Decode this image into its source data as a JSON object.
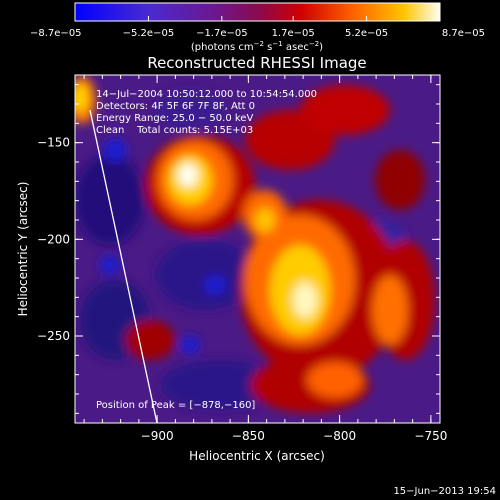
{
  "chart_data": {
    "type": "heatmap",
    "title": "Reconstructed RHESSI Image",
    "xlabel": "Heliocentric X (arcsec)",
    "ylabel": "Heliocentric Y (arcsec)",
    "x_ticks": [
      -900,
      -850,
      -800,
      -750
    ],
    "x_tick_labels": [
      "−900",
      "−850",
      "−800",
      "−750"
    ],
    "y_ticks": [
      -150,
      -200,
      -250
    ],
    "y_tick_labels": [
      "−150",
      "−200",
      "−250"
    ],
    "xlim": [
      -945,
      -745
    ],
    "ylim": [
      -295,
      -115
    ],
    "colorbar": {
      "range": [
        -8.7e-05,
        8.7e-05
      ],
      "tick_labels": [
        "−8.7e−05",
        "−5.2e−05",
        "−1.7e−05",
        "1.7e−05",
        "5.2e−05",
        "8.7e−05"
      ],
      "unit_main": "(photons cm",
      "unit_exp1": "−2",
      "unit_mid": " s",
      "unit_exp2": "−1",
      "unit_mid2": " asec",
      "unit_exp3": "−2",
      "unit_end": ")"
    },
    "annotations": {
      "time_range": "14−Jul−2004 10:50:12.000 to 10:54:54.000",
      "detectors": "Detectors: 4F 5F 6F 7F 8F, Att 0",
      "energy_range": "Energy Range: 25.0 − 50.0 keV",
      "clean_counts": "Clean    Total counts: 5.15E+03",
      "peak": "Position of Peak = [−878,−160]"
    },
    "peak": {
      "x": -878,
      "y": -160
    },
    "colors": {
      "map": [
        "#0000ff",
        "#5a1fa8",
        "#781078",
        "#c80000",
        "#ff6a00",
        "#ffd000",
        "#ffffe0"
      ]
    }
  },
  "footer": {
    "date": "15−Jun−2013 19:54"
  }
}
